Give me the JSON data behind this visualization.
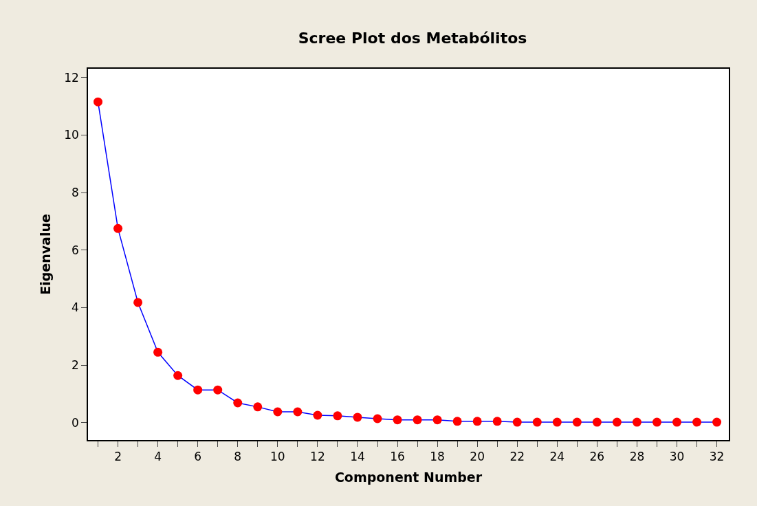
{
  "chart_data": {
    "type": "line",
    "title": "Scree Plot dos Metabólitos",
    "xlabel": "Component Number",
    "ylabel": "Eigenvalue",
    "x": [
      1,
      2,
      3,
      4,
      5,
      6,
      7,
      8,
      9,
      10,
      11,
      12,
      13,
      14,
      15,
      16,
      17,
      18,
      19,
      20,
      21,
      22,
      23,
      24,
      25,
      26,
      27,
      28,
      29,
      30,
      31,
      32
    ],
    "series": [
      {
        "color": "#0000ff",
        "values": [
          11.15,
          6.75,
          4.18,
          2.45,
          1.64,
          1.14,
          1.14,
          0.69,
          0.55,
          0.38,
          0.38,
          0.26,
          0.24,
          0.19,
          0.14,
          0.1,
          0.1,
          0.1,
          0.05,
          0.05,
          0.05,
          0.02,
          0.02,
          0.02,
          0.02,
          0.02,
          0.02,
          0.02,
          0.02,
          0.02,
          0.02,
          0.02
        ]
      }
    ],
    "marker": "circle",
    "line_style": "solid",
    "xlim": [
      0.5,
      32.6
    ],
    "ylim": [
      -0.6,
      12.3
    ],
    "xticks": [
      {
        "value": 1,
        "label": null
      },
      2,
      {
        "value": 3,
        "label": null
      },
      4,
      {
        "value": 5,
        "label": null
      },
      6,
      {
        "value": 7,
        "label": null
      },
      8,
      {
        "value": 9,
        "label": null
      },
      10,
      {
        "value": 11,
        "label": null
      },
      12,
      {
        "value": 13,
        "label": null
      },
      14,
      {
        "value": 15,
        "label": null
      },
      16,
      {
        "value": 17,
        "label": null
      },
      18,
      {
        "value": 19,
        "label": null
      },
      20,
      {
        "value": 21,
        "label": null
      },
      22,
      {
        "value": 23,
        "label": null
      },
      24,
      {
        "value": 25,
        "label": null
      },
      26,
      {
        "value": 27,
        "label": null
      },
      28,
      {
        "value": 29,
        "label": null
      },
      30,
      {
        "value": 31,
        "label": null
      },
      32
    ],
    "yticks": [
      0,
      2,
      4,
      6,
      8,
      10,
      12
    ]
  }
}
